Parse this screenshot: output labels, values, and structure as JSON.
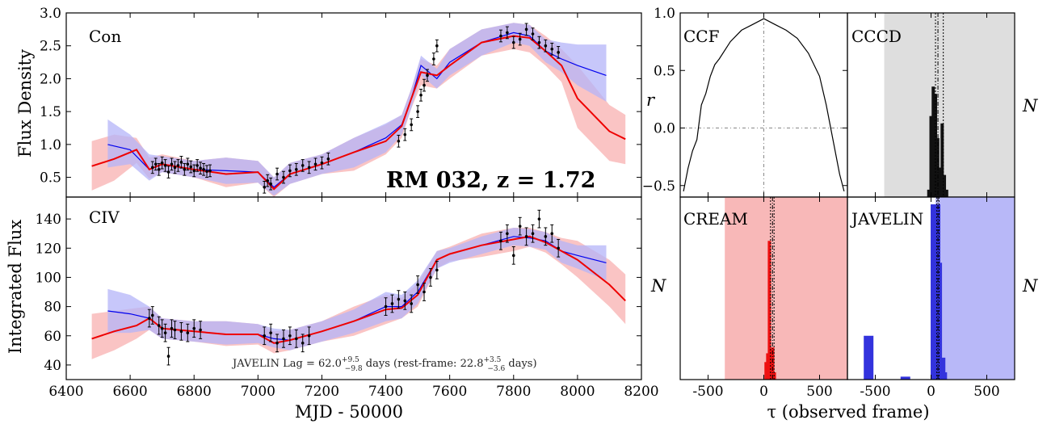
{
  "chart_data": [
    {
      "type": "line",
      "panel": "Con",
      "panel_label": "Con",
      "title": "RM 032, z = 1.72",
      "xlabel": "MJD - 50000",
      "ylabel": "Flux Density",
      "xlim": [
        6400,
        8200
      ],
      "ylim": [
        0.2,
        3.0
      ],
      "xticks": [
        6400,
        6600,
        6800,
        7000,
        7200,
        7400,
        7600,
        7800,
        8000,
        8200
      ],
      "yticks": [
        0.5,
        1.0,
        1.5,
        2.0,
        2.5,
        3.0
      ],
      "ytick_labels": [
        "0.5",
        "1.0",
        "1.5",
        "2.0",
        "2.5",
        "3.0"
      ],
      "colors": {
        "javelin": "#0000ee",
        "javelin_band": "#b4b4f8",
        "cream": "#ee0000",
        "cream_band": "#f8b0b0",
        "data": "#000000"
      },
      "series": [
        {
          "name": "JAVELIN",
          "x": [
            6530,
            6600,
            6660,
            6700,
            6800,
            6900,
            7000,
            7050,
            7100,
            7200,
            7300,
            7400,
            7450,
            7480,
            7510,
            7560,
            7600,
            7700,
            7800,
            7850,
            7900,
            7950,
            8000,
            8090
          ],
          "y": [
            1.0,
            0.92,
            0.62,
            0.7,
            0.62,
            0.6,
            0.58,
            0.35,
            0.55,
            0.7,
            0.88,
            1.1,
            1.3,
            1.7,
            2.2,
            2.0,
            2.25,
            2.55,
            2.7,
            2.65,
            2.42,
            2.3,
            2.2,
            2.05
          ],
          "band_hi": [
            1.38,
            1.15,
            0.85,
            0.82,
            0.75,
            0.8,
            0.75,
            0.5,
            0.72,
            0.85,
            1.1,
            1.32,
            1.45,
            1.85,
            2.35,
            2.15,
            2.45,
            2.75,
            2.85,
            2.82,
            2.6,
            2.55,
            2.52,
            2.52
          ],
          "band_lo": [
            0.65,
            0.7,
            0.45,
            0.58,
            0.5,
            0.4,
            0.42,
            0.22,
            0.4,
            0.55,
            0.65,
            0.88,
            1.15,
            1.55,
            2.05,
            1.85,
            2.05,
            2.35,
            2.55,
            2.5,
            2.25,
            2.1,
            1.9,
            1.65
          ]
        },
        {
          "name": "CREAM",
          "x": [
            6480,
            6550,
            6620,
            6660,
            6700,
            6800,
            6900,
            7000,
            7050,
            7100,
            7200,
            7300,
            7400,
            7450,
            7480,
            7510,
            7560,
            7600,
            7700,
            7800,
            7850,
            7900,
            7950,
            8000,
            8100,
            8150
          ],
          "y": [
            0.67,
            0.78,
            0.92,
            0.62,
            0.7,
            0.62,
            0.55,
            0.58,
            0.32,
            0.55,
            0.7,
            0.88,
            1.05,
            1.28,
            1.7,
            2.1,
            2.05,
            2.2,
            2.55,
            2.65,
            2.62,
            2.42,
            2.2,
            1.7,
            1.2,
            1.08
          ],
          "band_hi": [
            1.05,
            1.15,
            1.1,
            0.8,
            0.85,
            0.75,
            0.8,
            0.75,
            0.5,
            0.72,
            0.85,
            1.1,
            1.3,
            1.45,
            1.85,
            2.3,
            2.2,
            2.45,
            2.75,
            2.85,
            2.82,
            2.65,
            2.45,
            2.2,
            1.6,
            1.45
          ],
          "band_lo": [
            0.3,
            0.45,
            0.72,
            0.48,
            0.58,
            0.5,
            0.35,
            0.42,
            0.2,
            0.4,
            0.55,
            0.6,
            0.85,
            1.1,
            1.55,
            1.9,
            1.85,
            2.0,
            2.35,
            2.45,
            2.4,
            2.2,
            1.95,
            1.25,
            0.75,
            0.7
          ]
        },
        {
          "name": "data",
          "x": [
            6670,
            6680,
            6690,
            6700,
            6710,
            6720,
            6730,
            6740,
            6750,
            6760,
            6770,
            6780,
            6790,
            6800,
            6810,
            6820,
            6830,
            6840,
            6850,
            7020,
            7030,
            7040,
            7060,
            7080,
            7100,
            7120,
            7140,
            7160,
            7180,
            7200,
            7220,
            7440,
            7460,
            7480,
            7500,
            7510,
            7520,
            7530,
            7550,
            7560,
            7760,
            7780,
            7800,
            7820,
            7840,
            7860,
            7880,
            7900,
            7920,
            7940
          ],
          "y": [
            0.65,
            0.7,
            0.62,
            0.72,
            0.68,
            0.58,
            0.7,
            0.65,
            0.68,
            0.73,
            0.62,
            0.7,
            0.66,
            0.6,
            0.68,
            0.64,
            0.62,
            0.59,
            0.6,
            0.35,
            0.45,
            0.4,
            0.55,
            0.5,
            0.6,
            0.62,
            0.68,
            0.65,
            0.7,
            0.72,
            0.78,
            1.05,
            1.15,
            1.3,
            1.5,
            1.75,
            1.9,
            2.05,
            2.3,
            2.5,
            2.65,
            2.7,
            2.55,
            2.6,
            2.75,
            2.68,
            2.55,
            2.5,
            2.45,
            2.4
          ]
        }
      ]
    },
    {
      "type": "line",
      "panel": "CIV",
      "panel_label": "CIV",
      "xlabel": "MJD - 50000",
      "ylabel": "Integrated Flux",
      "annotation": "JAVELIN Lag = 62.0",
      "annotation_sup": "+9.5",
      "annotation_sub": "−9.8",
      "annotation_mid": " days (rest-frame: 22.8",
      "annotation_sup2": "+3.5",
      "annotation_sub2": "−3.6",
      "annotation_end": " days)",
      "xlim": [
        6400,
        8200
      ],
      "ylim": [
        30,
        155
      ],
      "xticks": [
        6400,
        6600,
        6800,
        7000,
        7200,
        7400,
        7600,
        7800,
        8000,
        8200
      ],
      "xtick_labels": [
        "6400",
        "6600",
        "6800",
        "7000",
        "7200",
        "7400",
        "7600",
        "7800",
        "8000",
        "8200"
      ],
      "yticks": [
        40,
        60,
        80,
        100,
        120,
        140
      ],
      "ytick_labels": [
        "40",
        "60",
        "80",
        "100",
        "120",
        "140"
      ],
      "series": [
        {
          "name": "JAVELIN",
          "x": [
            6530,
            6600,
            6660,
            6700,
            6800,
            6900,
            7000,
            7050,
            7100,
            7200,
            7300,
            7400,
            7450,
            7500,
            7560,
            7600,
            7700,
            7800,
            7850,
            7900,
            7950,
            8000,
            8090
          ],
          "y": [
            77,
            75,
            72,
            65,
            63,
            61,
            61,
            58,
            57,
            63,
            70,
            80,
            80,
            90,
            112,
            116,
            122,
            128,
            127,
            125,
            118,
            115,
            110
          ],
          "band_hi": [
            92,
            88,
            80,
            72,
            70,
            70,
            68,
            65,
            64,
            70,
            78,
            90,
            88,
            98,
            118,
            120,
            128,
            134,
            133,
            131,
            125,
            122,
            122
          ],
          "band_lo": [
            62,
            62,
            64,
            58,
            56,
            54,
            55,
            52,
            50,
            56,
            62,
            70,
            72,
            82,
            106,
            110,
            116,
            122,
            121,
            119,
            110,
            106,
            98
          ]
        },
        {
          "name": "CREAM",
          "x": [
            6480,
            6550,
            6620,
            6660,
            6700,
            6800,
            6900,
            7000,
            7050,
            7100,
            7200,
            7300,
            7400,
            7450,
            7500,
            7560,
            7600,
            7700,
            7800,
            7850,
            7900,
            7950,
            8000,
            8100,
            8150
          ],
          "y": [
            58,
            63,
            67,
            72,
            65,
            63,
            61,
            61,
            55,
            57,
            63,
            70,
            78,
            79,
            88,
            112,
            116,
            122,
            126,
            128,
            124,
            118,
            112,
            95,
            84
          ],
          "band_hi": [
            75,
            77,
            79,
            80,
            72,
            70,
            70,
            68,
            63,
            64,
            70,
            80,
            88,
            86,
            96,
            118,
            121,
            130,
            134,
            134,
            131,
            127,
            125,
            112,
            102
          ],
          "band_lo": [
            44,
            50,
            58,
            64,
            58,
            56,
            53,
            54,
            48,
            50,
            56,
            60,
            68,
            72,
            80,
            106,
            111,
            114,
            118,
            121,
            117,
            109,
            100,
            80,
            68
          ]
        },
        {
          "name": "data",
          "x": [
            6660,
            6670,
            6690,
            6700,
            6710,
            6720,
            6730,
            6740,
            6760,
            6780,
            6800,
            6820,
            7020,
            7040,
            7060,
            7080,
            7100,
            7120,
            7140,
            7160,
            7400,
            7420,
            7440,
            7460,
            7480,
            7500,
            7520,
            7540,
            7560,
            7760,
            7780,
            7800,
            7820,
            7840,
            7860,
            7880,
            7900,
            7920,
            7940
          ],
          "y": [
            72,
            74,
            67,
            65,
            62,
            46,
            65,
            64,
            63,
            62,
            65,
            64,
            60,
            62,
            55,
            58,
            60,
            58,
            55,
            60,
            80,
            82,
            85,
            84,
            82,
            95,
            90,
            100,
            105,
            125,
            130,
            115,
            135,
            128,
            130,
            140,
            128,
            130,
            120
          ]
        }
      ]
    },
    {
      "type": "line",
      "panel": "CCF",
      "panel_label": "CCF",
      "ylabel": "r",
      "xlim": [
        -750,
        750
      ],
      "ylim": [
        -0.6,
        1.0
      ],
      "yticks": [
        -0.5,
        0.0,
        0.5,
        1.0
      ],
      "ytick_labels": [
        "−0.5",
        "0.0",
        "0.5",
        "1.0"
      ],
      "x": [
        -720,
        -680,
        -640,
        -600,
        -560,
        -520,
        -480,
        -440,
        -400,
        -300,
        -200,
        -100,
        0,
        100,
        200,
        300,
        400,
        500,
        560,
        600,
        640,
        680,
        720
      ],
      "y": [
        -0.55,
        -0.35,
        -0.2,
        -0.1,
        0.2,
        0.3,
        0.45,
        0.55,
        0.6,
        0.75,
        0.85,
        0.9,
        0.95,
        0.9,
        0.85,
        0.78,
        0.65,
        0.45,
        0.2,
        0.0,
        -0.2,
        -0.4,
        -0.55
      ]
    },
    {
      "type": "bar",
      "panel": "CCCD",
      "panel_label": "CCCD",
      "ylabel": "N",
      "xlim": [
        -750,
        750
      ],
      "shade": [
        -420,
        750
      ],
      "bins": [
        -20,
        0,
        20,
        40,
        60,
        80,
        100,
        120,
        140
      ],
      "counts": [
        0.05,
        0.55,
        0.75,
        0.7,
        0.4,
        0.2,
        0.5,
        0.15,
        0.05
      ],
      "lines": [
        40,
        62,
        110
      ]
    },
    {
      "type": "bar",
      "panel": "CREAM",
      "panel_label": "CREAM",
      "ylabel": "N",
      "xlim": [
        -750,
        750
      ],
      "xticks": [
        -500,
        0,
        500
      ],
      "xtick_labels": [
        "-500",
        "0",
        "500"
      ],
      "shade": [
        -350,
        750
      ],
      "bins": [
        20,
        35,
        50,
        65,
        80,
        95
      ],
      "counts": [
        0.12,
        0.18,
        0.95,
        0.2,
        0.22,
        0.05
      ],
      "lines": [
        60,
        78,
        92
      ]
    },
    {
      "type": "bar",
      "panel": "JAVELIN",
      "panel_label": "JAVELIN",
      "ylabel": "N",
      "xlim": [
        -750,
        750
      ],
      "xticks": [
        -500,
        0,
        500
      ],
      "xtick_labels": [
        "-500",
        "0",
        "500"
      ],
      "shade": [
        40,
        750
      ],
      "bins": [
        -560,
        -230,
        40,
        55,
        70,
        85,
        100
      ],
      "counts": [
        0.3,
        0.02,
        1.2,
        0.8,
        0.1,
        0.15,
        0.05
      ],
      "lines": [
        52,
        62,
        72
      ],
      "xlabel": "τ (observed frame)"
    }
  ]
}
